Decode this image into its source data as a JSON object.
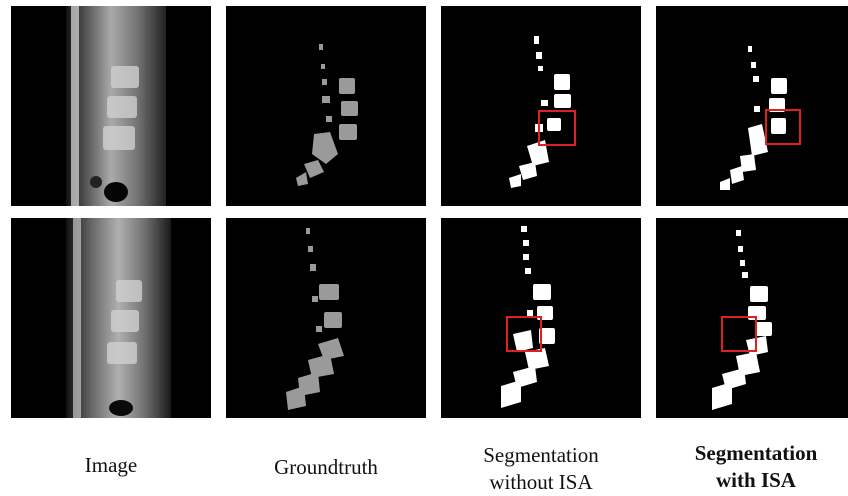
{
  "figure": {
    "columns": [
      {
        "caption_lines": [
          "Image"
        ],
        "bold": false
      },
      {
        "caption_lines": [
          "Groundtruth"
        ],
        "bold": false
      },
      {
        "caption_lines": [
          "Segmentation",
          "without ISA"
        ],
        "bold": false
      },
      {
        "caption_lines": [
          "Segmentation",
          "with ISA"
        ],
        "bold": true
      }
    ],
    "rows": 2,
    "colors": {
      "background": "#000000",
      "groundtruth_mask": "#9a9a9a",
      "prediction_mask": "#ffffff",
      "highlight_box": "#e02020"
    }
  }
}
